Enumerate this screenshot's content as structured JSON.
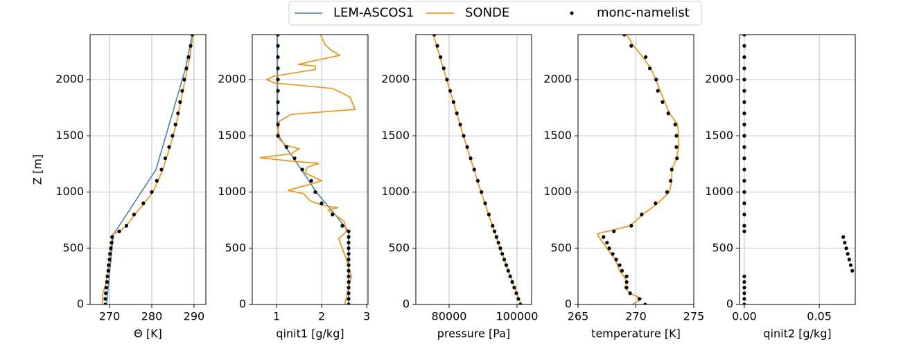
{
  "chart_data": [
    {
      "type": "line",
      "xlabel": "Θ [K]",
      "ylabel": "Z [m]",
      "legend": "upper center",
      "grid": true,
      "xlim": [
        265.4,
        292.8
      ],
      "ylim": [
        0,
        2400
      ],
      "xticks": [
        270,
        280,
        290
      ],
      "yticks": [
        0,
        500,
        1000,
        1500,
        2000
      ],
      "series": [
        {
          "name": "LEM-ASCOS1",
          "color": "#4682b4",
          "mode": "line",
          "x": [
            269.3,
            270.9,
            281.0,
            288.0,
            289.6
          ],
          "y": [
            0,
            620,
            1200,
            2100,
            2400
          ]
        },
        {
          "name": "SONDE",
          "color": "#ff8c00",
          "mode": "line",
          "x": [
            268.3,
            268.4,
            268.9,
            269.2,
            269.6,
            270.0,
            270.3,
            270.6,
            270.9,
            272.4,
            274.0,
            276.0,
            278.2,
            280.3,
            282.6,
            284.3,
            285.8,
            286.8,
            287.9,
            289.0,
            289.8
          ],
          "y": [
            0,
            100,
            150,
            200,
            300,
            400,
            500,
            600,
            630,
            650,
            700,
            800,
            900,
            1000,
            1200,
            1400,
            1600,
            1800,
            2000,
            2200,
            2400
          ]
        },
        {
          "name": "monc-namelist",
          "color": "#000000",
          "mode": "markers",
          "x": [
            269.0,
            269.0,
            269.1,
            269.2,
            269.4,
            269.5,
            269.7,
            269.8,
            270.0,
            270.1,
            270.3,
            270.5,
            270.6,
            272.3,
            274.0,
            275.8,
            278.0,
            280.0,
            281.2,
            282.3,
            283.2,
            284.1,
            284.9,
            285.6,
            286.2,
            286.7,
            287.2,
            287.7,
            288.2,
            288.7,
            289.2,
            289.6
          ],
          "y": [
            0,
            50,
            100,
            150,
            200,
            250,
            300,
            350,
            400,
            450,
            500,
            550,
            600,
            650,
            700,
            800,
            900,
            1000,
            1100,
            1200,
            1300,
            1400,
            1500,
            1600,
            1700,
            1800,
            1900,
            2000,
            2100,
            2200,
            2300,
            2400
          ]
        }
      ]
    },
    {
      "type": "line",
      "xlabel": "qinit1 [g/kg]",
      "grid": true,
      "xlim": [
        0.46,
        3.03
      ],
      "ylim": [
        0,
        2400
      ],
      "xticks": [
        1,
        2,
        3
      ],
      "yticks": [
        0,
        500,
        1000,
        1500,
        2000
      ],
      "series": [
        {
          "name": "LEM-ASCOS1",
          "color": "#4682b4",
          "mode": "line",
          "x": [
            2.6,
            2.6,
            2.3,
            1.88,
            1.55,
            1.2,
            1.05,
            1.02,
            1.02
          ],
          "y": [
            0,
            650,
            800,
            1000,
            1200,
            1400,
            1500,
            1600,
            2400
          ]
        },
        {
          "name": "SONDE",
          "color": "#ff8c00",
          "mode": "line",
          "x": [
            2.51,
            2.66,
            2.55,
            2.38,
            2.55,
            2.5,
            2.14,
            2.37,
            2.03,
            1.75,
            1.6,
            1.25,
            1.71,
            2.0,
            1.63,
            1.68,
            1.94,
            1.32,
            0.63,
            1.32,
            1.5,
            1.2,
            1.05,
            1.02,
            1.06,
            1.32,
            2.74,
            2.63,
            2.25,
            1.48,
            0.94,
            0.78,
            0.94,
            1.86,
            1.86,
            1.48,
            1.86,
            2.4,
            2.2,
            2.08,
            1.97
          ],
          "y": [
            0,
            250,
            400,
            585,
            650,
            740,
            840,
            860,
            880,
            920,
            985,
            1015,
            1065,
            1100,
            1170,
            1220,
            1255,
            1275,
            1305,
            1340,
            1385,
            1415,
            1475,
            1495,
            1630,
            1690,
            1735,
            1845,
            1920,
            1950,
            1970,
            2000,
            2030,
            2090,
            2120,
            2135,
            2170,
            2215,
            2265,
            2310,
            2400
          ]
        },
        {
          "name": "monc-namelist",
          "color": "#000000",
          "mode": "markers",
          "x": [
            2.6,
            2.6,
            2.6,
            2.6,
            2.6,
            2.6,
            2.6,
            2.6,
            2.6,
            2.6,
            2.6,
            2.6,
            2.6,
            2.6,
            2.46,
            2.24,
            2.0,
            1.86,
            1.77,
            1.57,
            1.4,
            1.22,
            1.03,
            1.03,
            1.03,
            1.03,
            1.03,
            1.03,
            1.03,
            1.03,
            1.03,
            1.03
          ],
          "y": [
            0,
            50,
            100,
            150,
            200,
            250,
            300,
            350,
            400,
            450,
            500,
            550,
            600,
            650,
            700,
            800,
            900,
            1000,
            1100,
            1200,
            1300,
            1400,
            1500,
            1600,
            1700,
            1800,
            1900,
            2000,
            2100,
            2200,
            2300,
            2400
          ]
        }
      ]
    },
    {
      "type": "line",
      "xlabel": "pressure [Pa]",
      "grid": true,
      "xlim": [
        70200,
        104300
      ],
      "ylim": [
        0,
        2400
      ],
      "xticks": [
        80000,
        100000
      ],
      "yticks": [
        0,
        500,
        1000,
        1500,
        2000
      ],
      "series": [
        {
          "name": "SONDE",
          "color": "#ff8c00",
          "mode": "line",
          "x": [
            101200,
            95000,
            89400,
            84200,
            79300,
            75300
          ],
          "y": [
            0,
            500,
            1000,
            1500,
            2000,
            2400
          ]
        },
        {
          "name": "monc-namelist",
          "color": "#000000",
          "mode": "markers",
          "x": [
            101000,
            100390,
            99790,
            99190,
            98600,
            98000,
            97410,
            96830,
            96250,
            95670,
            95100,
            94530,
            93960,
            93390,
            92830,
            91720,
            90620,
            89530,
            88460,
            87400,
            86350,
            85320,
            84290,
            83280,
            82290,
            81300,
            80320,
            79360,
            78410,
            77470,
            76540,
            75630
          ],
          "y": [
            0,
            50,
            100,
            150,
            200,
            250,
            300,
            350,
            400,
            450,
            500,
            550,
            600,
            650,
            700,
            800,
            900,
            1000,
            1100,
            1200,
            1300,
            1400,
            1500,
            1600,
            1700,
            1800,
            1900,
            2000,
            2100,
            2200,
            2300,
            2400
          ]
        }
      ]
    },
    {
      "type": "line",
      "xlabel": "temperature [K]",
      "grid": true,
      "xlim": [
        265,
        275
      ],
      "ylim": [
        0,
        2400
      ],
      "xticks": [
        265,
        270,
        275
      ],
      "yticks": [
        0,
        500,
        1000,
        1500,
        2000
      ],
      "series": [
        {
          "name": "SONDE",
          "color": "#ff8c00",
          "mode": "line",
          "x": [
            269.7,
            270.5,
            269.5,
            269.0,
            269.3,
            268.6,
            268.2,
            267.5,
            266.8,
            266.7,
            267.5,
            269.5,
            270.6,
            271.9,
            272.9,
            273.1,
            273.1,
            273.5,
            273.7,
            273.7,
            273.6,
            272.9,
            272.5,
            272.1,
            271.7,
            271.3,
            270.6,
            269.8,
            269.2
          ],
          "y": [
            0,
            50,
            100,
            150,
            200,
            300,
            400,
            500,
            600,
            630,
            650,
            700,
            800,
            900,
            1000,
            1100,
            1200,
            1300,
            1400,
            1500,
            1600,
            1700,
            1800,
            1900,
            2000,
            2100,
            2200,
            2300,
            2400
          ]
        },
        {
          "name": "monc-namelist",
          "color": "#000000",
          "mode": "markers",
          "x": [
            270.8,
            270.3,
            269.5,
            269.2,
            269.2,
            269.2,
            268.8,
            268.6,
            268.3,
            268.0,
            267.7,
            267.5,
            267.2,
            268.1,
            269.6,
            270.5,
            271.7,
            272.7,
            273.0,
            273.1,
            273.55,
            273.5,
            273.5,
            273.4,
            272.8,
            272.3,
            271.9,
            271.75,
            271.2,
            270.85,
            269.6,
            269.0
          ],
          "y": [
            0,
            50,
            100,
            150,
            200,
            250,
            300,
            350,
            400,
            450,
            500,
            550,
            600,
            650,
            700,
            800,
            900,
            1000,
            1100,
            1200,
            1300,
            1400,
            1500,
            1600,
            1700,
            1800,
            1900,
            2000,
            2100,
            2200,
            2300,
            2400
          ]
        }
      ]
    },
    {
      "type": "line",
      "xlabel": "qinit2 [g/kg]",
      "grid": true,
      "xlim": [
        -0.0032,
        0.074
      ],
      "ylim": [
        0,
        2400
      ],
      "xticks": [
        {
          "value": 0,
          "label": "0.00"
        },
        {
          "value": 0.05,
          "label": "0.05"
        }
      ],
      "yticks": [
        0,
        500,
        1000,
        1500,
        2000
      ],
      "series": [
        {
          "name": "monc-namelist",
          "color": "#000000",
          "mode": "markers",
          "x": [
            0,
            0,
            0,
            0,
            0,
            0,
            0.072,
            0.071,
            0.07,
            0.069,
            0.068,
            0.067,
            0.066,
            0,
            0,
            0,
            0,
            0,
            0,
            0,
            0,
            0,
            0,
            0,
            0,
            0,
            0,
            0,
            0,
            0,
            0,
            0
          ],
          "y": [
            0,
            50,
            100,
            150,
            200,
            250,
            300,
            350,
            400,
            450,
            500,
            550,
            600,
            650,
            700,
            800,
            900,
            1000,
            1100,
            1200,
            1300,
            1400,
            1500,
            1600,
            1700,
            1800,
            1900,
            2000,
            2100,
            2200,
            2300,
            2400
          ]
        }
      ]
    }
  ]
}
